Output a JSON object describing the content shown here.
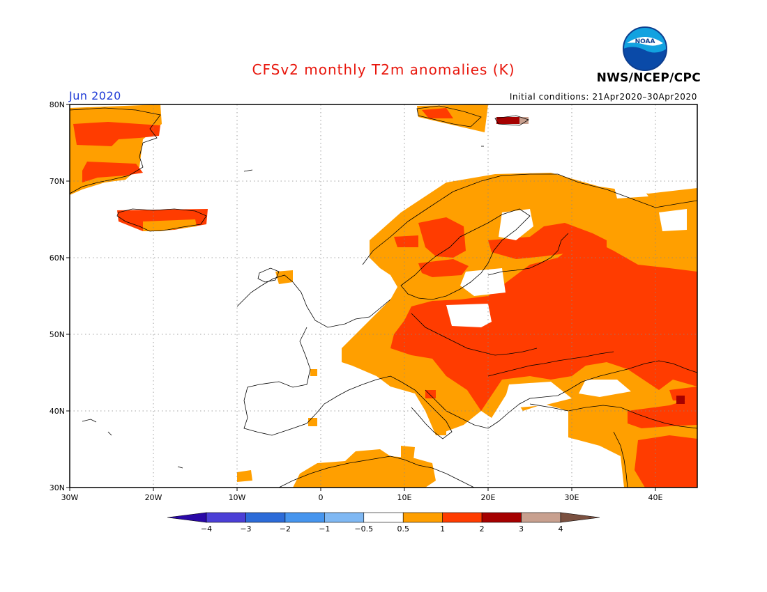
{
  "header": {
    "title": "CFSv2 monthly T2m anomalies (K)",
    "month": "Jun 2020",
    "initial_conditions": "Initial conditions: 21Apr2020–30Apr2020",
    "agency": "NWS/NCEP/CPC",
    "logo_text": "NOAA"
  },
  "map": {
    "lon_range": [
      -30,
      45
    ],
    "lat_range": [
      30,
      80
    ],
    "lat_labels": [
      "80N",
      "70N",
      "60N",
      "50N",
      "40N",
      "30N"
    ],
    "lon_labels": [
      "30W",
      "20W",
      "10W",
      "0",
      "10E",
      "20E",
      "30E",
      "40E"
    ],
    "grid": "dotted"
  },
  "legend": {
    "tick_labels": [
      "−4",
      "−3",
      "−2",
      "−1",
      "−0.5",
      "0.5",
      "1",
      "2",
      "3",
      "4"
    ],
    "colors": [
      "#2a08a6",
      "#4b3fd6",
      "#2c6bd8",
      "#4695ee",
      "#7fb8f3",
      "#ffffff",
      "#ff9f00",
      "#ff3c00",
      "#a50000",
      "#c8a08f",
      "#7a5040"
    ]
  }
}
